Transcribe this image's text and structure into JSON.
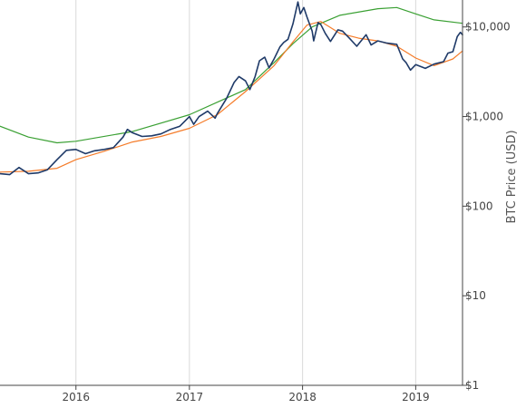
{
  "chart_data": {
    "type": "line",
    "title": "",
    "xlabel": "",
    "ylabel": "BTC Price (USD)",
    "y_scale": "log",
    "ylim": [
      1,
      20000
    ],
    "x_range": [
      "2015-05-01",
      "2019-06-01"
    ],
    "x_ticks": [
      {
        "date": "2016-01-01",
        "label": "2016"
      },
      {
        "date": "2017-01-01",
        "label": "2017"
      },
      {
        "date": "2018-01-01",
        "label": "2018"
      },
      {
        "date": "2019-01-01",
        "label": "2019"
      }
    ],
    "y_ticks": [
      {
        "value": 1,
        "label": "$1"
      },
      {
        "value": 10,
        "label": "$10"
      },
      {
        "value": 100,
        "label": "$100"
      },
      {
        "value": 1000,
        "label": "$1,000"
      },
      {
        "value": 10000,
        "label": "$10,000"
      }
    ],
    "y_axis_side": "right",
    "grid": {
      "x": true,
      "y": false
    },
    "legend": "none",
    "colors": {
      "price": "#1f3a68",
      "ma_short": "#f57c2a",
      "ma_long": "#3aa033",
      "grid": "#d9d9d9",
      "axis": "#444444"
    },
    "series": [
      {
        "key": "price",
        "points": [
          [
            "2015-05-01",
            230
          ],
          [
            "2015-06-01",
            225
          ],
          [
            "2015-07-01",
            270
          ],
          [
            "2015-08-01",
            230
          ],
          [
            "2015-09-01",
            235
          ],
          [
            "2015-10-01",
            255
          ],
          [
            "2015-11-01",
            330
          ],
          [
            "2015-12-01",
            420
          ],
          [
            "2016-01-01",
            430
          ],
          [
            "2016-02-01",
            385
          ],
          [
            "2016-03-01",
            415
          ],
          [
            "2016-04-01",
            430
          ],
          [
            "2016-05-01",
            450
          ],
          [
            "2016-06-01",
            590
          ],
          [
            "2016-06-15",
            720
          ],
          [
            "2016-07-01",
            660
          ],
          [
            "2016-08-01",
            600
          ],
          [
            "2016-09-01",
            610
          ],
          [
            "2016-10-01",
            640
          ],
          [
            "2016-11-01",
            720
          ],
          [
            "2016-12-01",
            780
          ],
          [
            "2017-01-01",
            1000
          ],
          [
            "2017-01-15",
            820
          ],
          [
            "2017-02-01",
            1000
          ],
          [
            "2017-03-01",
            1150
          ],
          [
            "2017-03-25",
            960
          ],
          [
            "2017-04-01",
            1080
          ],
          [
            "2017-05-01",
            1600
          ],
          [
            "2017-05-25",
            2400
          ],
          [
            "2017-06-10",
            2800
          ],
          [
            "2017-07-01",
            2500
          ],
          [
            "2017-07-15",
            2000
          ],
          [
            "2017-08-01",
            2800
          ],
          [
            "2017-08-15",
            4200
          ],
          [
            "2017-09-01",
            4600
          ],
          [
            "2017-09-15",
            3500
          ],
          [
            "2017-10-01",
            4400
          ],
          [
            "2017-10-20",
            6000
          ],
          [
            "2017-11-01",
            6700
          ],
          [
            "2017-11-15",
            7300
          ],
          [
            "2017-12-01",
            10800
          ],
          [
            "2017-12-17",
            19000
          ],
          [
            "2017-12-25",
            14000
          ],
          [
            "2018-01-05",
            16500
          ],
          [
            "2018-01-15",
            13000
          ],
          [
            "2018-02-01",
            9000
          ],
          [
            "2018-02-06",
            7000
          ],
          [
            "2018-02-20",
            11200
          ],
          [
            "2018-03-01",
            10600
          ],
          [
            "2018-03-15",
            8500
          ],
          [
            "2018-04-01",
            6900
          ],
          [
            "2018-04-25",
            9300
          ],
          [
            "2018-05-10",
            9000
          ],
          [
            "2018-06-01",
            7500
          ],
          [
            "2018-06-25",
            6100
          ],
          [
            "2018-07-25",
            8200
          ],
          [
            "2018-08-10",
            6300
          ],
          [
            "2018-09-01",
            7000
          ],
          [
            "2018-10-01",
            6600
          ],
          [
            "2018-11-01",
            6400
          ],
          [
            "2018-11-20",
            4400
          ],
          [
            "2018-12-01",
            4000
          ],
          [
            "2018-12-15",
            3300
          ],
          [
            "2019-01-01",
            3800
          ],
          [
            "2019-02-01",
            3450
          ],
          [
            "2019-03-01",
            3850
          ],
          [
            "2019-04-01",
            4100
          ],
          [
            "2019-04-15",
            5100
          ],
          [
            "2019-05-01",
            5300
          ],
          [
            "2019-05-15",
            7800
          ],
          [
            "2019-05-25",
            8700
          ],
          [
            "2019-06-01",
            8200
          ]
        ]
      },
      {
        "key": "ma_short",
        "points": [
          [
            "2015-05-01",
            240
          ],
          [
            "2015-08-01",
            245
          ],
          [
            "2015-11-01",
            265
          ],
          [
            "2016-01-01",
            330
          ],
          [
            "2016-04-01",
            410
          ],
          [
            "2016-07-01",
            520
          ],
          [
            "2016-10-01",
            600
          ],
          [
            "2017-01-01",
            740
          ],
          [
            "2017-04-01",
            1050
          ],
          [
            "2017-07-01",
            1900
          ],
          [
            "2017-10-01",
            3700
          ],
          [
            "2017-12-01",
            6800
          ],
          [
            "2018-01-15",
            10500
          ],
          [
            "2018-03-01",
            11500
          ],
          [
            "2018-05-01",
            8500
          ],
          [
            "2018-07-01",
            7500
          ],
          [
            "2018-09-01",
            7000
          ],
          [
            "2018-11-01",
            6100
          ],
          [
            "2019-01-01",
            4500
          ],
          [
            "2019-03-01",
            3700
          ],
          [
            "2019-05-01",
            4400
          ],
          [
            "2019-06-01",
            5400
          ]
        ]
      },
      {
        "key": "ma_long",
        "points": [
          [
            "2015-05-01",
            780
          ],
          [
            "2015-08-01",
            590
          ],
          [
            "2015-11-01",
            510
          ],
          [
            "2016-01-01",
            530
          ],
          [
            "2016-07-01",
            680
          ],
          [
            "2017-01-01",
            1050
          ],
          [
            "2017-07-01",
            2000
          ],
          [
            "2017-10-01",
            4000
          ],
          [
            "2017-12-01",
            6500
          ],
          [
            "2018-02-01",
            10000
          ],
          [
            "2018-05-01",
            13500
          ],
          [
            "2018-09-01",
            16000
          ],
          [
            "2018-11-01",
            16500
          ],
          [
            "2019-01-01",
            14000
          ],
          [
            "2019-03-01",
            12000
          ],
          [
            "2019-06-01",
            11000
          ]
        ]
      }
    ]
  }
}
